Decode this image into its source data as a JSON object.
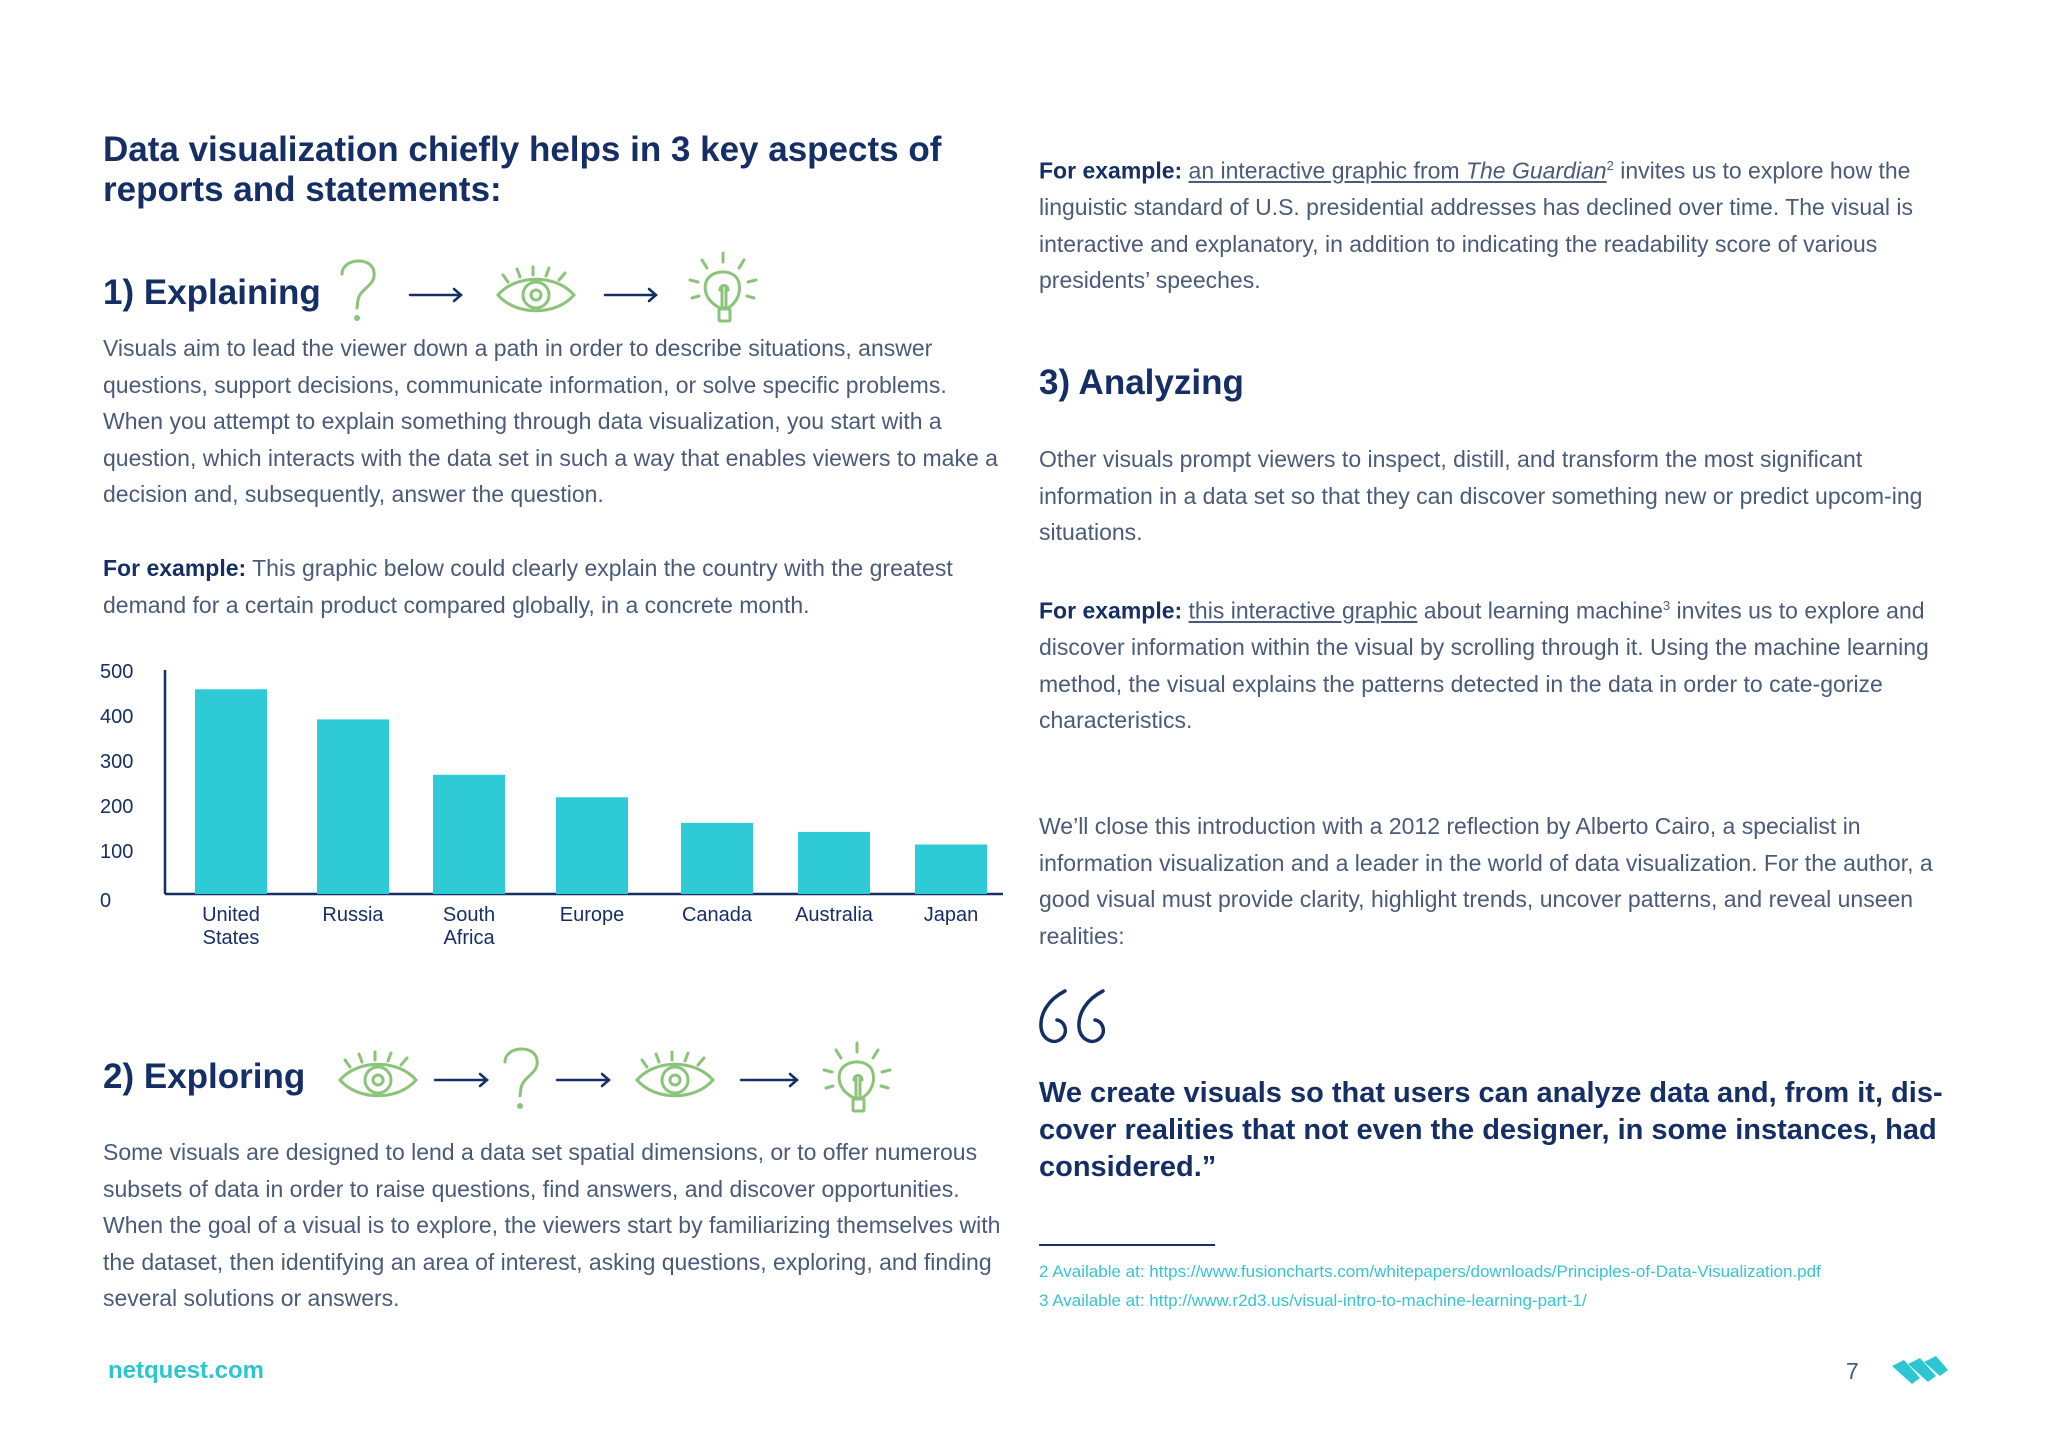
{
  "heading": "Data visualization chiefly helps in 3 key aspects of reports and statements:",
  "explaining": {
    "title": "1) Explaining",
    "body": "Visuals aim to lead the viewer down a path in order to describe situations, answer questions, support decisions, communicate information, or solve specific problems. When you attempt to explain something through data visualization, you start with a question, which interacts with the data set in such a way that enables viewers to make a decision and, subsequently, answer the question.",
    "example_label": "For example:",
    "example_text": " This graphic below could clearly explain the country with the greatest demand for a certain product compared globally, in a concrete month."
  },
  "chart_data": {
    "type": "bar",
    "categories": [
      "United States",
      "Russia",
      "South Africa",
      "Europe",
      "Canada",
      "Australia",
      "Japan"
    ],
    "values": [
      455,
      388,
      265,
      215,
      158,
      138,
      110
    ],
    "ylim": [
      0,
      500
    ],
    "yticks": [
      "0",
      "100",
      "200",
      "300",
      "400",
      "500"
    ],
    "title": "",
    "xlabel": "",
    "ylabel": "",
    "color": "#2ecad5"
  },
  "exploring": {
    "title": "2) Exploring",
    "body": "Some visuals are designed to lend a data set spatial dimensions, or to offer numerous subsets of data in order to raise questions, find answers, and discover opportunities. When the goal of a visual is to explore, the viewers start by familiarizing themselves with the dataset, then identifying an area of interest, asking questions, exploring, and finding several solutions or answers."
  },
  "right_example1": {
    "label": "For example:",
    "link_pre": "an interactive graphic from ",
    "link_italic": "The Guardian",
    "sup": "2",
    "rest": " invites us to explore how the linguistic standard of U.S. presidential addresses has declined over time. The visual is interactive and explanatory, in addition to indicating the readability score of various presidents’ speeches."
  },
  "analyzing": {
    "title": "3) Analyzing",
    "body": "Other visuals prompt viewers to inspect, distill, and transform the most significant information in a data set so that they can discover something new or predict upcom-ing situations.",
    "example_label": "For example:",
    "link": "this interactive graphic",
    "mid": " about learning machine",
    "sup": "3",
    "rest": " invites us to explore and discover information within the visual by scrolling through it. Using the machine learning method, the visual explains the patterns detected in the data in order to cate-gorize characteristics."
  },
  "closing": "We’ll close this introduction with a 2012 reflection by Alberto Cairo, a specialist in information visualization and a leader in the world of data visualization. For the author, a good visual must provide clarity, highlight trends, uncover patterns, and reveal unseen realities:",
  "quote": "We create visuals so that users can analyze data and, from it, dis-cover realities that not even the designer, in some instances, had considered.”",
  "footnotes": [
    "2  Available at: https://www.fusioncharts.com/whitepapers/downloads/Principles-of-Data-Visualization.pdf",
    "3  Available at:  http://www.r2d3.us/visual-intro-to-machine-learning-part-1/"
  ],
  "footer": {
    "brand": "netquest.com",
    "page": "7"
  },
  "icons": [
    "question-icon",
    "arrow-right-icon",
    "eye-icon",
    "lightbulb-icon",
    "quote-mark-icon",
    "netquest-logo-icon"
  ],
  "colors": {
    "navy": "#152f66",
    "teal": "#2ecad5",
    "green": "#8cc37a",
    "text": "#4a5a78"
  }
}
